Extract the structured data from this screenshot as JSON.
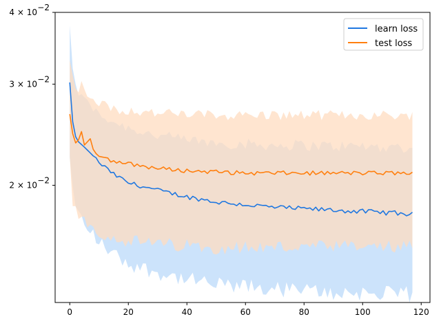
{
  "chart_data": {
    "type": "line",
    "title": "",
    "xlabel": "",
    "ylabel": "",
    "yscale": "log",
    "xlim": [
      -5,
      123
    ],
    "ylim": [
      0.0125,
      0.04
    ],
    "grid": false,
    "legend_position": "top-right",
    "x_ticks": [
      0,
      20,
      40,
      60,
      80,
      100,
      120
    ],
    "x_tick_labels": [
      "0",
      "20",
      "40",
      "60",
      "80",
      "100",
      "120"
    ],
    "y_ticks": [
      {
        "value": 0.02,
        "base": "2 × 10",
        "exp": "−2"
      },
      {
        "value": 0.03,
        "base": "3 × 10",
        "exp": "−2"
      },
      {
        "value": 0.04,
        "base": "4 × 10",
        "exp": "−2"
      }
    ],
    "series": [
      {
        "name": "learn loss",
        "color": "#1f77e0",
        "fill_color": "#cce3fb",
        "keypoints_x": [
          0,
          1,
          2,
          3,
          5,
          8,
          10,
          15,
          20,
          30,
          40,
          50,
          60,
          70,
          80,
          90,
          100,
          110,
          117
        ],
        "keypoints_mean": [
          0.0302,
          0.0258,
          0.0243,
          0.0238,
          0.0233,
          0.0225,
          0.0219,
          0.0209,
          0.0202,
          0.0196,
          0.0191,
          0.0187,
          0.0185,
          0.0183,
          0.0182,
          0.0181,
          0.018,
          0.0179,
          0.0178
        ],
        "keypoints_upper": [
          0.0378,
          0.0318,
          0.0298,
          0.029,
          0.0282,
          0.0272,
          0.0265,
          0.0258,
          0.0252,
          0.0244,
          0.024,
          0.0237,
          0.0236,
          0.0235,
          0.0235,
          0.0234,
          0.0234,
          0.0233,
          0.0233
        ],
        "keypoints_lower": [
          0.0225,
          0.0195,
          0.0182,
          0.0177,
          0.0172,
          0.0165,
          0.0159,
          0.0152,
          0.0146,
          0.0141,
          0.0137,
          0.0134,
          0.0133,
          0.0132,
          0.0131,
          0.013,
          0.013,
          0.0129,
          0.0129
        ]
      },
      {
        "name": "test loss",
        "color": "#ff7f0e",
        "fill_color": "#ffdcc0",
        "keypoints_x": [
          0,
          1,
          2,
          3,
          4,
          5,
          6,
          7,
          8,
          10,
          15,
          20,
          30,
          40,
          50,
          60,
          70,
          80,
          90,
          100,
          110,
          117
        ],
        "keypoints_mean": [
          0.0266,
          0.0246,
          0.0237,
          0.024,
          0.0248,
          0.0235,
          0.0238,
          0.0241,
          0.0231,
          0.0226,
          0.022,
          0.0218,
          0.0214,
          0.0212,
          0.0211,
          0.021,
          0.021,
          0.021,
          0.021,
          0.021,
          0.021,
          0.021
        ],
        "keypoints_upper": [
          0.0325,
          0.0308,
          0.0298,
          0.0295,
          0.03,
          0.029,
          0.0288,
          0.0288,
          0.0282,
          0.0278,
          0.0272,
          0.027,
          0.0267,
          0.0266,
          0.0265,
          0.0265,
          0.0265,
          0.0265,
          0.0265,
          0.0265,
          0.0265,
          0.0265
        ],
        "keypoints_lower": [
          0.0222,
          0.0185,
          0.0182,
          0.0179,
          0.0177,
          0.0175,
          0.0172,
          0.017,
          0.0168,
          0.0166,
          0.0162,
          0.016,
          0.0158,
          0.0157,
          0.0156,
          0.0156,
          0.0156,
          0.0156,
          0.0156,
          0.0156,
          0.0156,
          0.0156
        ]
      }
    ]
  }
}
